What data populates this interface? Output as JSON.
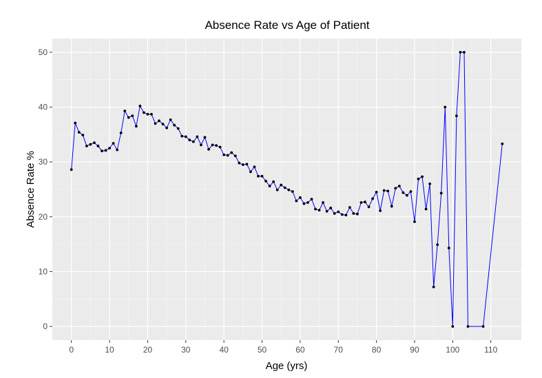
{
  "chart_data": {
    "type": "line",
    "title": "Absence Rate vs Age of Patient",
    "xlabel": "Age (yrs)",
    "ylabel": "Absence Rate %",
    "xlim": [
      -5,
      118
    ],
    "ylim": [
      -2.5,
      52.5
    ],
    "x_ticks": [
      0,
      10,
      20,
      30,
      40,
      50,
      60,
      70,
      80,
      90,
      100,
      110
    ],
    "y_ticks": [
      0,
      10,
      20,
      30,
      40,
      50
    ],
    "grid": true,
    "colors": {
      "panel_background": "#ebebeb",
      "grid_major": "#ffffff",
      "grid_minor": "#f5f5f5",
      "line": "#0000ff",
      "points": "#000000"
    },
    "series": [
      {
        "x": [
          0,
          1,
          2,
          3,
          4,
          5,
          6,
          7,
          8,
          9,
          10,
          11,
          12,
          13,
          14,
          15,
          16,
          17,
          18,
          19,
          20,
          21,
          22,
          23,
          24,
          25,
          26,
          27,
          28,
          29,
          30,
          31,
          32,
          33,
          34,
          35,
          36,
          37,
          38,
          39,
          40,
          41,
          42,
          43,
          44,
          45,
          46,
          47,
          48,
          49,
          50,
          51,
          52,
          53,
          54,
          55,
          56,
          57,
          58,
          59,
          60,
          61,
          62,
          63,
          64,
          65,
          66,
          67,
          68,
          69,
          70,
          71,
          72,
          73,
          74,
          75,
          76,
          77,
          78,
          79,
          80,
          81,
          82,
          83,
          84,
          85,
          86,
          87,
          88,
          89,
          90,
          91,
          92,
          93,
          94,
          95,
          96,
          97,
          98,
          99,
          100,
          101,
          102,
          103,
          104,
          108,
          113
        ],
        "y": [
          28.6,
          37.1,
          35.4,
          34.9,
          32.9,
          33.2,
          33.5,
          32.9,
          32.0,
          32.1,
          32.5,
          33.4,
          32.2,
          35.3,
          39.3,
          38.1,
          38.4,
          36.5,
          40.2,
          39.0,
          38.7,
          38.7,
          37.0,
          37.5,
          36.9,
          36.2,
          37.7,
          36.7,
          36.1,
          34.7,
          34.6,
          34.0,
          33.7,
          34.6,
          33.1,
          34.5,
          32.3,
          33.1,
          33.0,
          32.7,
          31.3,
          31.2,
          31.7,
          31.1,
          29.8,
          29.5,
          29.6,
          28.2,
          29.1,
          27.4,
          27.4,
          26.5,
          25.6,
          26.4,
          24.9,
          25.8,
          25.3,
          24.9,
          24.6,
          22.9,
          23.5,
          22.4,
          22.6,
          23.2,
          21.4,
          21.2,
          22.6,
          21.0,
          21.6,
          20.6,
          20.9,
          20.4,
          20.3,
          21.7,
          20.6,
          20.5,
          22.6,
          22.7,
          21.8,
          23.3,
          24.5,
          21.1,
          24.8,
          24.7,
          21.9,
          25.2,
          25.6,
          24.4,
          23.9,
          24.6,
          19.1,
          26.9,
          27.3,
          21.4,
          26.0,
          7.2,
          14.9,
          24.3,
          40.0,
          14.3,
          0.0,
          38.4,
          50.0,
          50.0,
          0.0,
          0.0,
          33.3
        ]
      }
    ]
  }
}
